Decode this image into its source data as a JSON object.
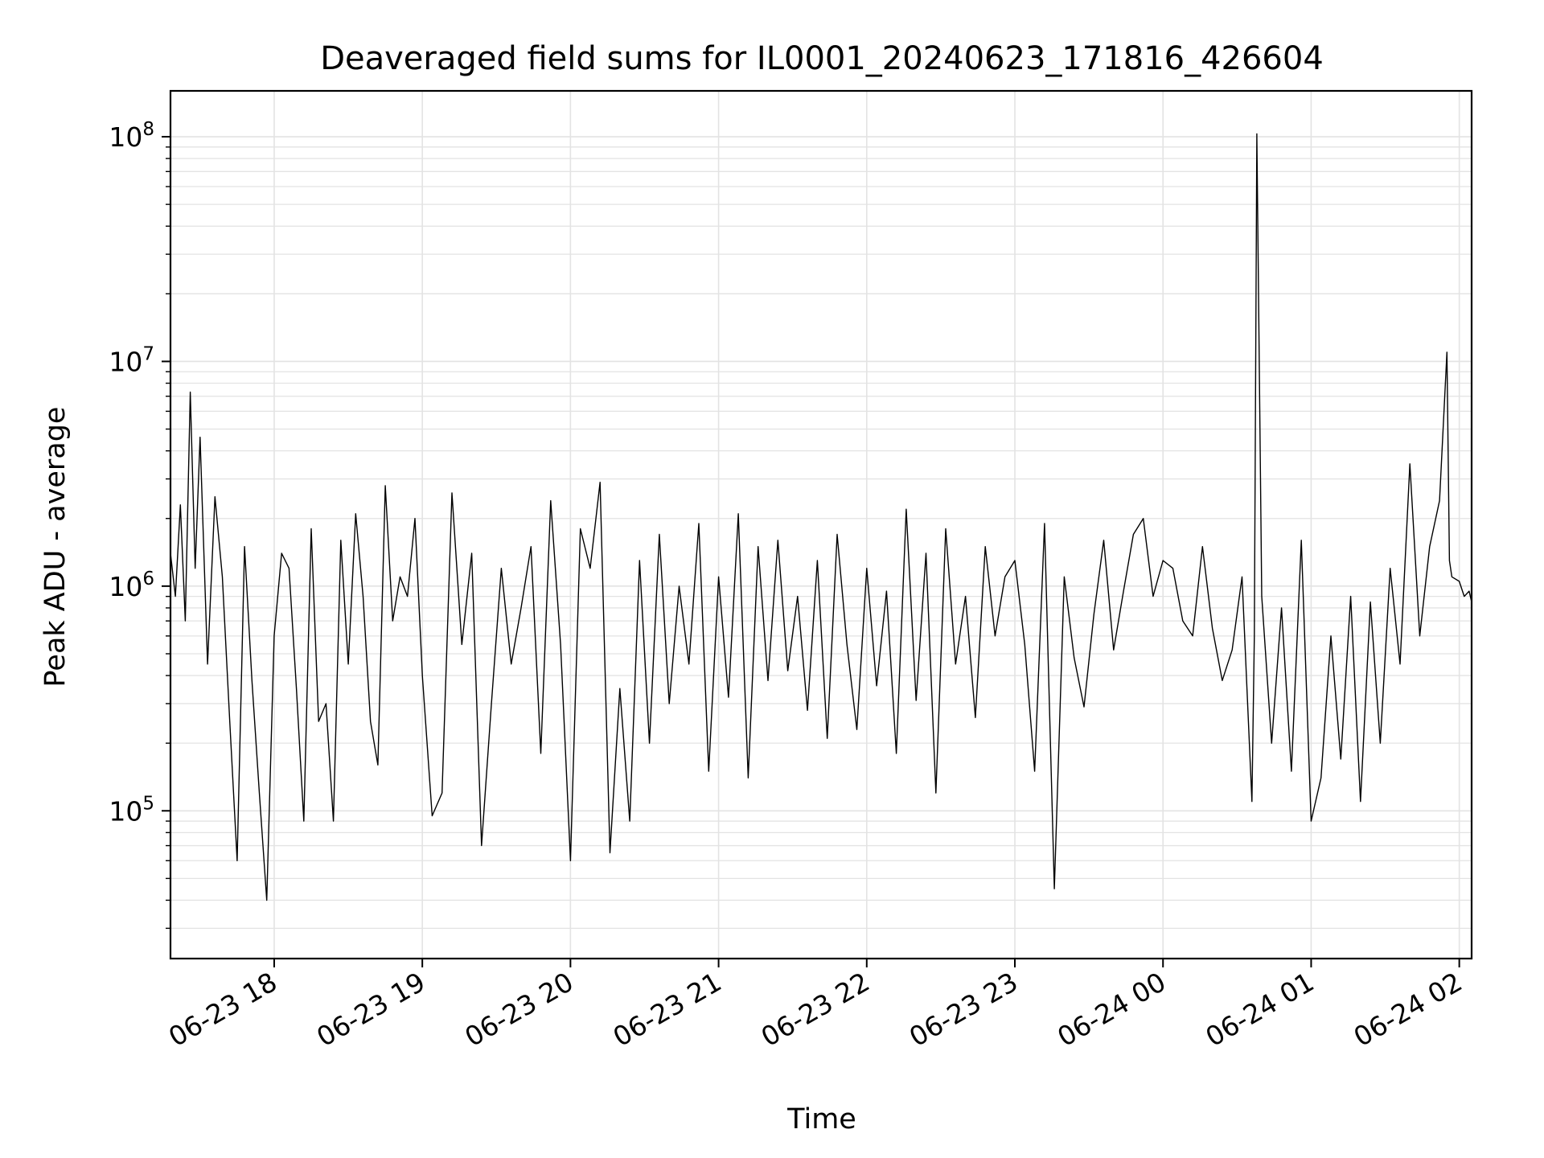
{
  "chart_data": {
    "type": "line",
    "title": "Deaveraged field sums for IL0001_20240623_171816_426604",
    "xlabel": "Time",
    "ylabel": "Peak ADU - average",
    "yscale": "log",
    "ylim": [
      22000,
      160000000
    ],
    "xlim": [
      "2024-06-23 17:18",
      "2024-06-24 02:05"
    ],
    "grid": true,
    "x_ticks": [
      {
        "value": "2024-06-23 18:00",
        "label": "06-23 18"
      },
      {
        "value": "2024-06-23 19:00",
        "label": "06-23 19"
      },
      {
        "value": "2024-06-23 20:00",
        "label": "06-23 20"
      },
      {
        "value": "2024-06-23 21:00",
        "label": "06-23 21"
      },
      {
        "value": "2024-06-23 22:00",
        "label": "06-23 22"
      },
      {
        "value": "2024-06-23 23:00",
        "label": "06-23 23"
      },
      {
        "value": "2024-06-24 00:00",
        "label": "06-24 00"
      },
      {
        "value": "2024-06-24 01:00",
        "label": "06-24 01"
      },
      {
        "value": "2024-06-24 02:00",
        "label": "06-24 02"
      }
    ],
    "y_ticks": [
      {
        "value": 100000,
        "base": "10",
        "exp": "5"
      },
      {
        "value": 1000000,
        "base": "10",
        "exp": "6"
      },
      {
        "value": 10000000,
        "base": "10",
        "exp": "7"
      },
      {
        "value": 100000000,
        "base": "10",
        "exp": "8"
      }
    ],
    "series": [
      {
        "color": "#000000",
        "x": [
          "2024-06-23 17:18",
          "2024-06-23 17:20",
          "2024-06-23 17:22",
          "2024-06-23 17:24",
          "2024-06-23 17:26",
          "2024-06-23 17:28",
          "2024-06-23 17:30",
          "2024-06-23 17:33",
          "2024-06-23 17:36",
          "2024-06-23 17:39",
          "2024-06-23 17:42",
          "2024-06-23 17:45",
          "2024-06-23 17:48",
          "2024-06-23 17:51",
          "2024-06-23 17:54",
          "2024-06-23 17:57",
          "2024-06-23 18:00",
          "2024-06-23 18:03",
          "2024-06-23 18:06",
          "2024-06-23 18:09",
          "2024-06-23 18:12",
          "2024-06-23 18:15",
          "2024-06-23 18:18",
          "2024-06-23 18:21",
          "2024-06-23 18:24",
          "2024-06-23 18:27",
          "2024-06-23 18:30",
          "2024-06-23 18:33",
          "2024-06-23 18:36",
          "2024-06-23 18:39",
          "2024-06-23 18:42",
          "2024-06-23 18:45",
          "2024-06-23 18:48",
          "2024-06-23 18:51",
          "2024-06-23 18:54",
          "2024-06-23 18:57",
          "2024-06-23 19:00",
          "2024-06-23 19:04",
          "2024-06-23 19:08",
          "2024-06-23 19:12",
          "2024-06-23 19:16",
          "2024-06-23 19:20",
          "2024-06-23 19:24",
          "2024-06-23 19:28",
          "2024-06-23 19:32",
          "2024-06-23 19:36",
          "2024-06-23 19:40",
          "2024-06-23 19:44",
          "2024-06-23 19:48",
          "2024-06-23 19:52",
          "2024-06-23 19:56",
          "2024-06-23 20:00",
          "2024-06-23 20:04",
          "2024-06-23 20:08",
          "2024-06-23 20:12",
          "2024-06-23 20:16",
          "2024-06-23 20:20",
          "2024-06-23 20:24",
          "2024-06-23 20:28",
          "2024-06-23 20:32",
          "2024-06-23 20:36",
          "2024-06-23 20:40",
          "2024-06-23 20:44",
          "2024-06-23 20:48",
          "2024-06-23 20:52",
          "2024-06-23 20:56",
          "2024-06-23 21:00",
          "2024-06-23 21:04",
          "2024-06-23 21:08",
          "2024-06-23 21:12",
          "2024-06-23 21:16",
          "2024-06-23 21:20",
          "2024-06-23 21:24",
          "2024-06-23 21:28",
          "2024-06-23 21:32",
          "2024-06-23 21:36",
          "2024-06-23 21:40",
          "2024-06-23 21:44",
          "2024-06-23 21:48",
          "2024-06-23 21:52",
          "2024-06-23 21:56",
          "2024-06-23 22:00",
          "2024-06-23 22:04",
          "2024-06-23 22:08",
          "2024-06-23 22:12",
          "2024-06-23 22:16",
          "2024-06-23 22:20",
          "2024-06-23 22:24",
          "2024-06-23 22:28",
          "2024-06-23 22:32",
          "2024-06-23 22:36",
          "2024-06-23 22:40",
          "2024-06-23 22:44",
          "2024-06-23 22:48",
          "2024-06-23 22:52",
          "2024-06-23 22:56",
          "2024-06-23 23:00",
          "2024-06-23 23:04",
          "2024-06-23 23:08",
          "2024-06-23 23:12",
          "2024-06-23 23:16",
          "2024-06-23 23:20",
          "2024-06-23 23:24",
          "2024-06-23 23:28",
          "2024-06-23 23:32",
          "2024-06-23 23:36",
          "2024-06-23 23:40",
          "2024-06-23 23:44",
          "2024-06-23 23:48",
          "2024-06-23 23:52",
          "2024-06-23 23:56",
          "2024-06-24 00:00",
          "2024-06-24 00:04",
          "2024-06-24 00:08",
          "2024-06-24 00:12",
          "2024-06-24 00:16",
          "2024-06-24 00:20",
          "2024-06-24 00:24",
          "2024-06-24 00:28",
          "2024-06-24 00:32",
          "2024-06-24 00:36",
          "2024-06-24 00:37",
          "2024-06-24 00:38",
          "2024-06-24 00:40",
          "2024-06-24 00:44",
          "2024-06-24 00:48",
          "2024-06-24 00:52",
          "2024-06-24 00:56",
          "2024-06-24 01:00",
          "2024-06-24 01:04",
          "2024-06-24 01:08",
          "2024-06-24 01:12",
          "2024-06-24 01:16",
          "2024-06-24 01:20",
          "2024-06-24 01:24",
          "2024-06-24 01:28",
          "2024-06-24 01:32",
          "2024-06-24 01:36",
          "2024-06-24 01:40",
          "2024-06-24 01:44",
          "2024-06-24 01:48",
          "2024-06-24 01:52",
          "2024-06-24 01:55",
          "2024-06-24 01:56",
          "2024-06-24 01:57",
          "2024-06-24 02:00",
          "2024-06-24 02:02",
          "2024-06-24 02:04",
          "2024-06-24 02:05"
        ],
        "values": [
          1400000,
          900000,
          2300000,
          700000,
          7300000,
          1200000,
          4600000,
          450000,
          2500000,
          1100000,
          250000,
          60000,
          1500000,
          380000,
          120000,
          40000,
          600000,
          1400000,
          1200000,
          350000,
          90000,
          1800000,
          250000,
          300000,
          90000,
          1600000,
          450000,
          2100000,
          900000,
          250000,
          160000,
          2800000,
          700000,
          1100000,
          900000,
          2000000,
          400000,
          95000,
          120000,
          2600000,
          550000,
          1400000,
          70000,
          300000,
          1200000,
          450000,
          800000,
          1500000,
          180000,
          2400000,
          550000,
          60000,
          1800000,
          1200000,
          2900000,
          65000,
          350000,
          90000,
          1300000,
          200000,
          1700000,
          300000,
          1000000,
          450000,
          1900000,
          150000,
          1100000,
          320000,
          2100000,
          140000,
          1500000,
          380000,
          1600000,
          420000,
          900000,
          280000,
          1300000,
          210000,
          1700000,
          550000,
          230000,
          1200000,
          360000,
          950000,
          180000,
          2200000,
          310000,
          1400000,
          120000,
          1800000,
          450000,
          900000,
          260000,
          1500000,
          600000,
          1100000,
          1300000,
          550000,
          150000,
          1900000,
          45000,
          1100000,
          480000,
          290000,
          750000,
          1600000,
          520000,
          950000,
          1700000,
          2000000,
          900000,
          1300000,
          1200000,
          700000,
          600000,
          1500000,
          650000,
          380000,
          520000,
          1100000,
          110000,
          600000,
          103000000,
          900000,
          200000,
          800000,
          150000,
          1600000,
          90000,
          140000,
          600000,
          170000,
          900000,
          110000,
          850000,
          200000,
          1200000,
          450000,
          3500000,
          600000,
          1500000,
          2400000,
          11000000,
          1300000,
          1100000,
          1050000,
          900000,
          950000,
          850000
        ]
      }
    ]
  }
}
